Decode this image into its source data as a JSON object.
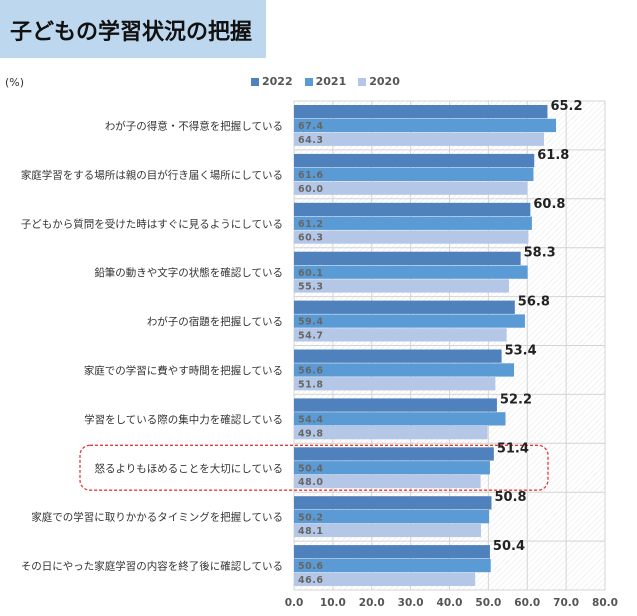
{
  "title": "子どもの学習状況の把握",
  "unit_label": "(%)",
  "chart_data": {
    "type": "bar",
    "orientation": "horizontal",
    "categories": [
      "わが子の得意・不得意を把握している",
      "家庭学習をする場所は親の目が行き届く場所にしている",
      "子どもから質問を受けた時はすぐに見るようにしている",
      "鉛筆の動きや文字の状態を確認している",
      "わが子の宿題を把握している",
      "家庭での学習に費やす時間を把握している",
      "学習をしている際の集中力を確認している",
      "怒るよりもほめることを大切にしている",
      "家庭での学習に取りかかるタイミングを把握している",
      "その日にやった家庭学習の内容を終了後に確認している"
    ],
    "series": [
      {
        "name": "2022",
        "color": "#4f81bd",
        "values": [
          65.2,
          61.8,
          60.8,
          58.3,
          56.8,
          53.4,
          52.2,
          51.4,
          50.8,
          50.4
        ]
      },
      {
        "name": "2021",
        "color": "#5b9bd5",
        "values": [
          67.4,
          61.6,
          61.2,
          60.1,
          59.4,
          56.6,
          54.4,
          50.4,
          50.2,
          50.6
        ]
      },
      {
        "name": "2020",
        "color": "#b4c7e7",
        "values": [
          64.3,
          60.0,
          60.3,
          55.3,
          54.7,
          51.8,
          49.8,
          48.0,
          48.1,
          46.6
        ]
      }
    ],
    "xlim": [
      0,
      80
    ],
    "xticks": [
      "0.0",
      "10.0",
      "20.0",
      "30.0",
      "40.0",
      "50.0",
      "60.0",
      "70.0",
      "80.0"
    ],
    "highlighted_category": "怒るよりもほめることを大切にしている",
    "legend_position": "top",
    "grid": true
  }
}
